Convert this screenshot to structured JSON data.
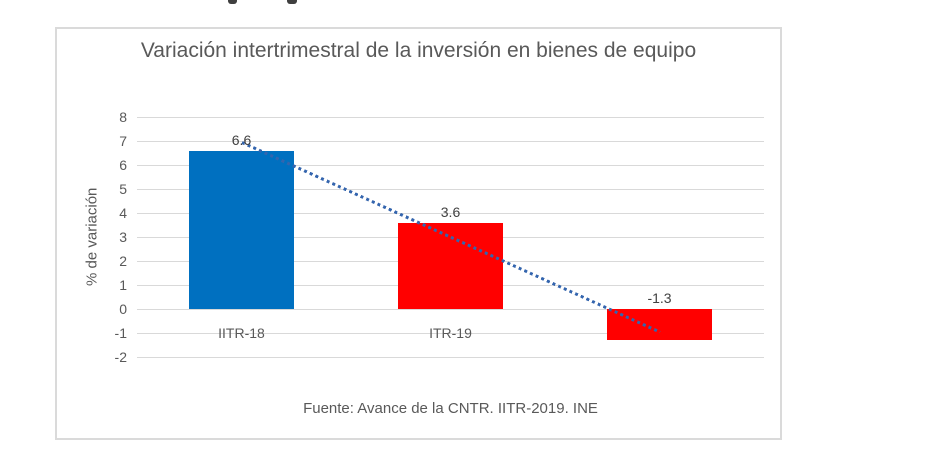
{
  "chart_data": {
    "type": "bar",
    "title": "Variación intertrimestral de la inversión en bienes de equipo",
    "categories": [
      "IITR-18",
      "ITR-19",
      ""
    ],
    "values": [
      6.6,
      3.6,
      -1.3
    ],
    "data_labels": [
      "6.6",
      "3.6",
      "-1.3"
    ],
    "bar_colors": [
      "#0070C0",
      "#FF0000",
      "#FF0000"
    ],
    "xlabel": "",
    "ylabel": "% de variación",
    "ylim": [
      -2,
      8
    ],
    "yticks": [
      8,
      7,
      6,
      5,
      4,
      3,
      2,
      1,
      0,
      -1,
      -2
    ],
    "grid": true,
    "legend": "none",
    "trendline": {
      "style": "dotted",
      "color": "#3465AE",
      "points_category_value": [
        [
          0,
          6.92
        ],
        [
          2,
          -0.98
        ]
      ]
    },
    "source_note": "Fuente: Avance de la CNTR. IITR-2019. INE",
    "colors": {
      "title_text": "#595959",
      "axis_text": "#595959",
      "data_label_text": "#404040",
      "gridline": "#D9D9D9",
      "frame_border": "#DADADA",
      "bar_blue": "#0070C0",
      "bar_red": "#FF0000",
      "trendline_blue": "#3465AE"
    }
  }
}
